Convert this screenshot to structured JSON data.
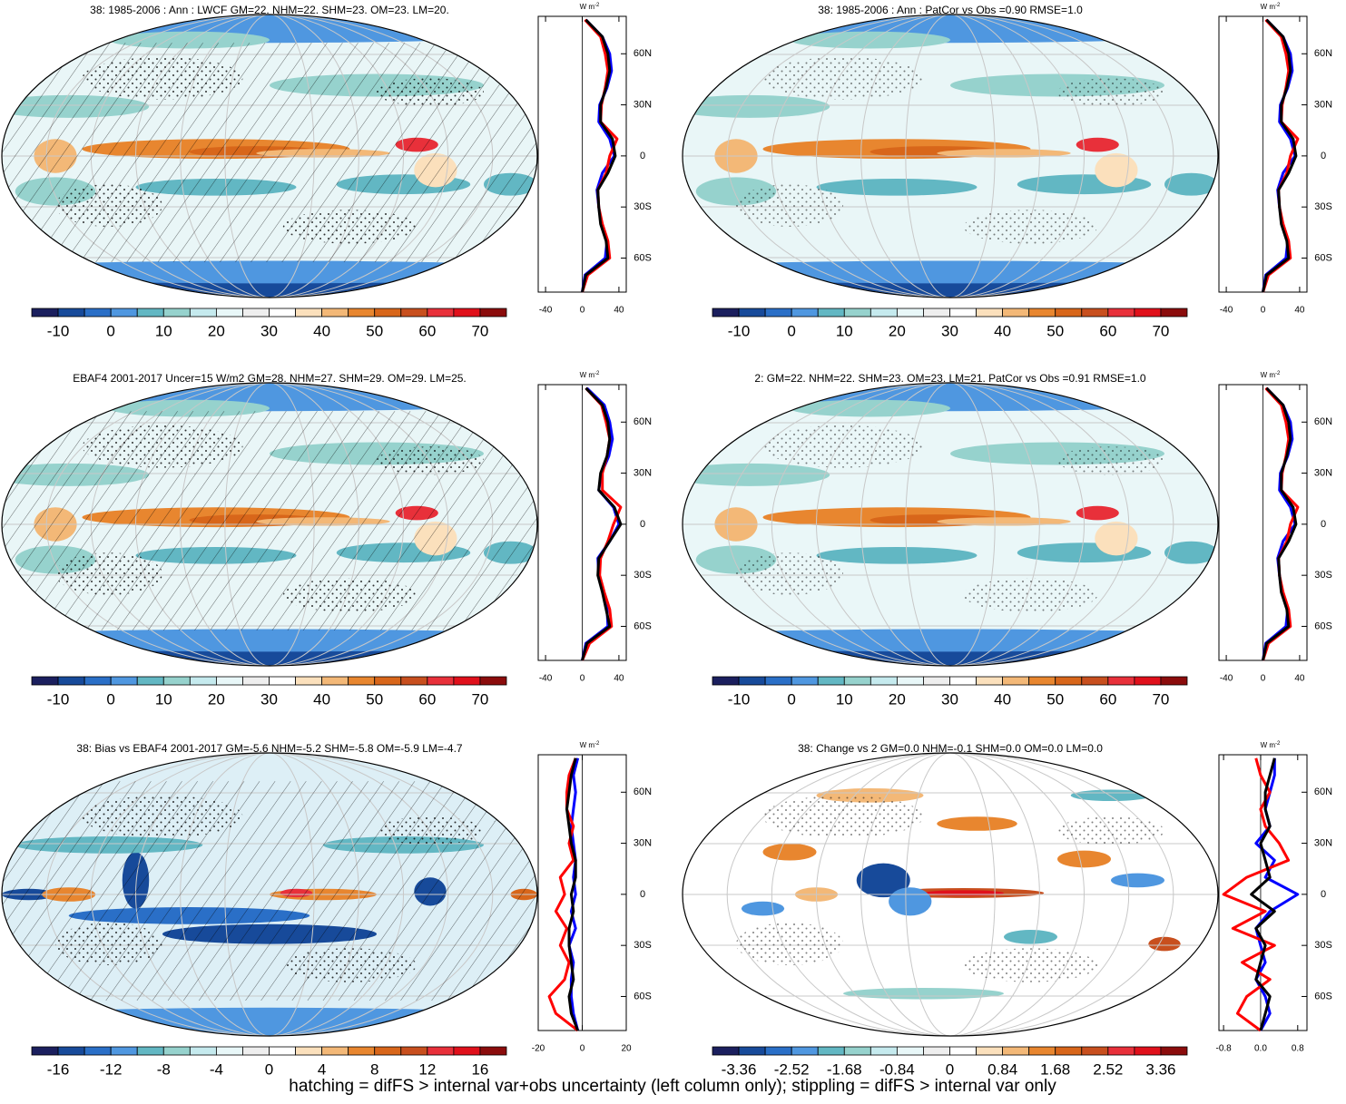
{
  "footer": "hatching = difFS > internal var+obs uncertainty (left column only); stippling = difFS > internal var only",
  "units_base": "W m",
  "units_exp": "-2",
  "palette": [
    "#1b1f5e",
    "#174a9a",
    "#2a6fc7",
    "#4f97e0",
    "#62b7c3",
    "#96d2cd",
    "#c5eaee",
    "#e8f7f8",
    "#eeeeee",
    "#ffffff",
    "#fbe0bc",
    "#f3b877",
    "#e8862f",
    "#d8661a",
    "#c84f1e",
    "#e8303a",
    "#e0101b",
    "#8b0c0c"
  ],
  "latitudes": [
    -80,
    -70,
    -60,
    -50,
    -40,
    -30,
    -20,
    -10,
    0,
    10,
    20,
    30,
    40,
    50,
    60,
    70,
    80
  ],
  "lat_axis": {
    "ylim": [
      -80,
      82
    ],
    "ticks": [
      {
        "value": 60,
        "label": "60N"
      },
      {
        "value": 30,
        "label": "30N"
      },
      0,
      {
        "value": -30,
        "label": "30S"
      },
      {
        "value": -60,
        "label": "60S"
      }
    ]
  },
  "panels": [
    {
      "title": "38: 1985-2006 : Ann : LWCF GM=22. NHM=22. SHM=23. OM=23. LM=20.",
      "colorbar_labels": [
        -10,
        0,
        10,
        20,
        30,
        40,
        50,
        60,
        70
      ],
      "profile": {
        "xlim": [
          -48,
          48
        ],
        "xticks": [
          -40,
          0,
          40
        ],
        "series": [
          {
            "color": "#0000ff",
            "values": [
              0,
              3,
              25,
              27,
              21,
              18,
              16,
              22,
              35,
              30,
              18,
              19,
              27,
              32,
              30,
              22,
              4
            ]
          },
          {
            "color": "#ff0000",
            "values": [
              0,
              6,
              30,
              28,
              22,
              18,
              17,
              26,
              30,
              38,
              20,
              21,
              25,
              28,
              25,
              20,
              3
            ]
          },
          {
            "color": "#000000",
            "values": [
              0,
              4,
              28,
              26,
              20,
              18,
              17,
              28,
              36,
              33,
              20,
              20,
              26,
              30,
              28,
              22,
              4
            ]
          }
        ]
      }
    },
    {
      "title": "38: 1985-2006 : Ann : PatCor vs Obs =0.90 RMSE=1.0",
      "colorbar_labels": [
        -10,
        0,
        10,
        20,
        30,
        40,
        50,
        60,
        70
      ],
      "profile": {
        "xlim": [
          -48,
          48
        ],
        "xticks": [
          -40,
          0,
          40
        ],
        "series": [
          {
            "color": "#0000ff",
            "values": [
              0,
              3,
              25,
              27,
              21,
              18,
              16,
              22,
              35,
              30,
              18,
              19,
              27,
              32,
              30,
              22,
              4
            ]
          },
          {
            "color": "#ff0000",
            "values": [
              0,
              6,
              30,
              28,
              22,
              18,
              17,
              26,
              30,
              38,
              20,
              21,
              25,
              28,
              25,
              20,
              3
            ]
          },
          {
            "color": "#000000",
            "values": [
              0,
              4,
              28,
              26,
              20,
              18,
              17,
              28,
              36,
              33,
              20,
              20,
              26,
              30,
              28,
              22,
              4
            ]
          }
        ]
      }
    },
    {
      "title": "EBAF4 2001-2017 Uncer=15 W/m2 GM=28. NHM=27. SHM=29. OM=29. LM=25.",
      "colorbar_labels": [
        -10,
        0,
        10,
        20,
        30,
        40,
        50,
        60,
        70
      ],
      "profile": {
        "xlim": [
          -48,
          48
        ],
        "xticks": [
          -40,
          0,
          40
        ],
        "series": [
          {
            "color": "#0000ff",
            "values": [
              0,
              4,
              28,
              27,
              23,
              18,
              17,
              30,
              40,
              34,
              18,
              21,
              29,
              33,
              30,
              24,
              5
            ]
          },
          {
            "color": "#ff0000",
            "values": [
              0,
              8,
              32,
              30,
              24,
              19,
              20,
              28,
              34,
              42,
              22,
              22,
              27,
              30,
              26,
              21,
              4
            ]
          },
          {
            "color": "#000000",
            "values": [
              0,
              5,
              30,
              26,
              22,
              17,
              18,
              30,
              42,
              35,
              18,
              20,
              27,
              30,
              28,
              22,
              4
            ]
          }
        ]
      }
    },
    {
      "title": "2: GM=22. NHM=22. SHM=23. OM=23. LM=21. PatCor vs Obs =0.91 RMSE=1.0",
      "colorbar_labels": [
        -10,
        0,
        10,
        20,
        30,
        40,
        50,
        60,
        70
      ],
      "profile": {
        "xlim": [
          -48,
          48
        ],
        "xticks": [
          -40,
          0,
          40
        ],
        "series": [
          {
            "color": "#0000ff",
            "values": [
              0,
              3,
              25,
              27,
              21,
              18,
              16,
              22,
              35,
              30,
              18,
              19,
              27,
              32,
              30,
              22,
              4
            ]
          },
          {
            "color": "#ff0000",
            "values": [
              0,
              6,
              30,
              28,
              22,
              18,
              17,
              26,
              30,
              38,
              20,
              21,
              25,
              28,
              25,
              20,
              3
            ]
          },
          {
            "color": "#000000",
            "values": [
              0,
              4,
              28,
              26,
              20,
              18,
              17,
              28,
              36,
              33,
              20,
              20,
              26,
              30,
              28,
              22,
              4
            ]
          }
        ]
      }
    },
    {
      "title": "38: Bias vs EBAF4 2001-2017 GM=-5.6 NHM=-5.2 SHM=-5.8 OM=-5.9 LM=-4.7",
      "colorbar_labels": [
        -16,
        -12,
        -8,
        -4,
        0,
        4,
        8,
        12,
        16
      ],
      "profile": {
        "xlim": [
          -20,
          20
        ],
        "xticks": [
          -20,
          0,
          20
        ],
        "series": [
          {
            "color": "#0000ff",
            "values": [
              -2,
              -4,
              -5,
              -5,
              -4,
              -6,
              -3,
              -5,
              -3,
              -4,
              -3,
              -4,
              -5,
              -4,
              -3,
              -4,
              -2
            ]
          },
          {
            "color": "#ff0000",
            "values": [
              -2,
              -12,
              -15,
              -8,
              -6,
              -10,
              -7,
              -12,
              -8,
              -10,
              -4,
              -6,
              -4,
              -7,
              -7,
              -6,
              -3
            ]
          },
          {
            "color": "#000000",
            "values": [
              -2,
              -5,
              -6,
              -4,
              -5,
              -6,
              -6,
              -4,
              -5,
              -3,
              -3,
              -5,
              -6,
              -7,
              -6,
              -5,
              -3
            ]
          }
        ]
      }
    },
    {
      "title": "38: Change vs 2 GM=0.0 NHM=-0.1 SHM=0.0 OM=0.0 LM=0.0",
      "colorbar_labels": [
        -3.36,
        -2.52,
        -1.68,
        -0.84,
        0,
        0.84,
        1.68,
        2.52,
        3.36
      ],
      "profile": {
        "xlim": [
          -0.9,
          1.0
        ],
        "xticks": [
          -0.8,
          {
            "value": 0,
            "label": "0.0"
          },
          0.8
        ],
        "series": [
          {
            "color": "#0000ff",
            "values": [
              0,
              0.2,
              0.1,
              -0.1,
              0.1,
              0,
              -0.1,
              0.2,
              0.8,
              0.1,
              0.3,
              -0.1,
              0.2,
              0.1,
              0.2,
              0.3,
              0.3
            ]
          },
          {
            "color": "#ff0000",
            "values": [
              0,
              -0.5,
              -0.3,
              0.2,
              -0.4,
              0.3,
              -0.6,
              0.1,
              -0.8,
              -0.3,
              0.6,
              0.4,
              0.1,
              0,
              0.2,
              0,
              -0.1
            ]
          },
          {
            "color": "#000000",
            "values": [
              0,
              0.1,
              0.2,
              -0.1,
              0,
              0.1,
              -0.1,
              0.3,
              -0.2,
              0.2,
              0.1,
              0,
              0.2,
              0.1,
              0.1,
              0.2,
              0.3
            ]
          }
        ]
      }
    }
  ]
}
